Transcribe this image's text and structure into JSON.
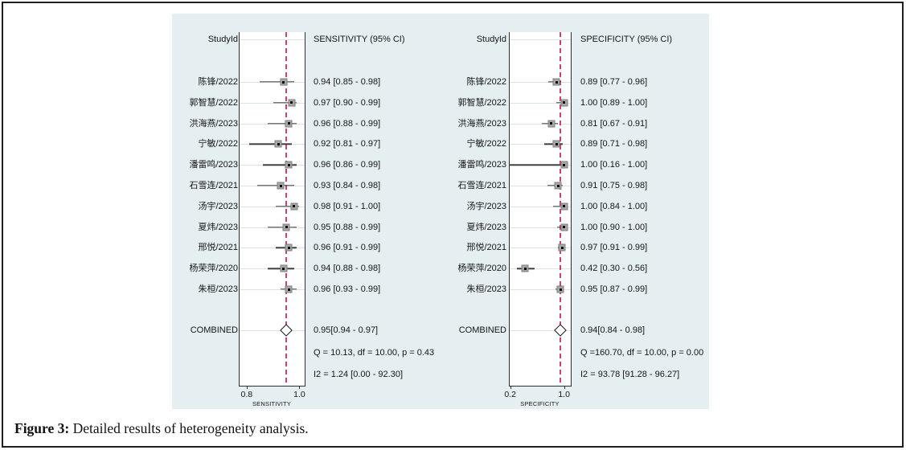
{
  "figure": {
    "caption_prefix": "Figure 3:",
    "caption_text": " Detailed results of heterogeneity analysis."
  },
  "colors": {
    "panel_background": "#e5eef1",
    "plot_background": "#ffffff",
    "dashed_reference_line": "#cb4368",
    "ci_line": "#3e3e3e",
    "marker_fill": "#a8a8a8",
    "guide_line": "#d6e3e8",
    "axis_line": "#2e2e2e"
  },
  "chart_data": [
    {
      "type": "forest",
      "panel": "sensitivity",
      "header_study": "StudyId",
      "header_value": "SENSITIVITY (95% CI)",
      "studies": [
        {
          "name": "陈锋/2022",
          "est": 0.94,
          "lo": 0.85,
          "hi": 0.98,
          "label": "0.94 [0.85 - 0.98]"
        },
        {
          "name": "郭智慧/2022",
          "est": 0.97,
          "lo": 0.9,
          "hi": 0.99,
          "label": "0.97 [0.90 - 0.99]"
        },
        {
          "name": "洪海燕/2023",
          "est": 0.96,
          "lo": 0.88,
          "hi": 0.99,
          "label": "0.96 [0.88 - 0.99]"
        },
        {
          "name": "宁敏/2022",
          "est": 0.92,
          "lo": 0.81,
          "hi": 0.97,
          "label": "0.92 [0.81 - 0.97]"
        },
        {
          "name": "潘雷鸣/2023",
          "est": 0.96,
          "lo": 0.86,
          "hi": 0.99,
          "label": "0.96 [0.86 - 0.99]"
        },
        {
          "name": "石雪连/2021",
          "est": 0.93,
          "lo": 0.84,
          "hi": 0.98,
          "label": "0.93 [0.84 - 0.98]"
        },
        {
          "name": "汤宇/2023",
          "est": 0.98,
          "lo": 0.91,
          "hi": 1.0,
          "label": "0.98 [0.91 - 1.00]"
        },
        {
          "name": "夏炜/2023",
          "est": 0.95,
          "lo": 0.88,
          "hi": 0.99,
          "label": "0.95 [0.88 - 0.99]"
        },
        {
          "name": "邢悦/2021",
          "est": 0.96,
          "lo": 0.91,
          "hi": 0.99,
          "label": "0.96 [0.91 - 0.99]"
        },
        {
          "name": "杨荣萍/2020",
          "est": 0.94,
          "lo": 0.88,
          "hi": 0.98,
          "label": "0.94 [0.88 - 0.98]"
        },
        {
          "name": "朱桓/2023",
          "est": 0.96,
          "lo": 0.93,
          "hi": 0.99,
          "label": "0.96 [0.93 - 0.99]"
        }
      ],
      "combined": {
        "name": "COMBINED",
        "est": 0.95,
        "lo": 0.94,
        "hi": 0.97,
        "label": "0.95[0.94 - 0.97]"
      },
      "stats": [
        "Q = 10.13, df = 10.00, p =  0.43",
        "I2 = 1.24 [0.00 - 92.30]"
      ],
      "axis": {
        "min": 0.77,
        "max": 1.02,
        "ticks": [
          0.8,
          1.0
        ],
        "tick_labels": [
          "0.8",
          "1.0"
        ],
        "xlabel": "SENSITIVITY"
      }
    },
    {
      "type": "forest",
      "panel": "specificity",
      "header_study": "StudyId",
      "header_value": "SPECIFICITY (95% CI)",
      "studies": [
        {
          "name": "陈锋/2022",
          "est": 0.89,
          "lo": 0.77,
          "hi": 0.96,
          "label": "0.89 [0.77 - 0.96]"
        },
        {
          "name": "郭智慧/2022",
          "est": 1.0,
          "lo": 0.89,
          "hi": 1.0,
          "label": "1.00 [0.89 - 1.00]"
        },
        {
          "name": "洪海燕/2023",
          "est": 0.81,
          "lo": 0.67,
          "hi": 0.91,
          "label": "0.81 [0.67 - 0.91]"
        },
        {
          "name": "宁敏/2022",
          "est": 0.89,
          "lo": 0.71,
          "hi": 0.98,
          "label": "0.89 [0.71 - 0.98]"
        },
        {
          "name": "潘雷鸣/2023",
          "est": 1.0,
          "lo": 0.16,
          "hi": 1.0,
          "label": "1.00 [0.16 - 1.00]"
        },
        {
          "name": "石雪连/2021",
          "est": 0.91,
          "lo": 0.75,
          "hi": 0.98,
          "label": "0.91 [0.75 - 0.98]"
        },
        {
          "name": "汤宇/2023",
          "est": 1.0,
          "lo": 0.84,
          "hi": 1.0,
          "label": "1.00 [0.84 - 1.00]"
        },
        {
          "name": "夏炜/2023",
          "est": 1.0,
          "lo": 0.9,
          "hi": 1.0,
          "label": "1.00 [0.90 - 1.00]"
        },
        {
          "name": "邢悦/2021",
          "est": 0.97,
          "lo": 0.91,
          "hi": 0.99,
          "label": "0.97 [0.91 - 0.99]"
        },
        {
          "name": "杨荣萍/2020",
          "est": 0.42,
          "lo": 0.3,
          "hi": 0.56,
          "label": "0.42 [0.30 - 0.56]"
        },
        {
          "name": "朱桓/2023",
          "est": 0.95,
          "lo": 0.87,
          "hi": 0.99,
          "label": "0.95 [0.87 - 0.99]"
        }
      ],
      "combined": {
        "name": "COMBINED",
        "est": 0.94,
        "lo": 0.84,
        "hi": 0.98,
        "label": "0.94[0.84 - 0.98]"
      },
      "stats": [
        "Q =160.70, df = 10.00, p =  0.00",
        "I2 = 93.78 [91.28 - 96.27]"
      ],
      "axis": {
        "min": 0.18,
        "max": 1.1,
        "ticks": [
          0.2,
          1.0
        ],
        "tick_labels": [
          "0.2",
          "1.0"
        ],
        "xlabel": "SPECIFICITY"
      }
    }
  ]
}
